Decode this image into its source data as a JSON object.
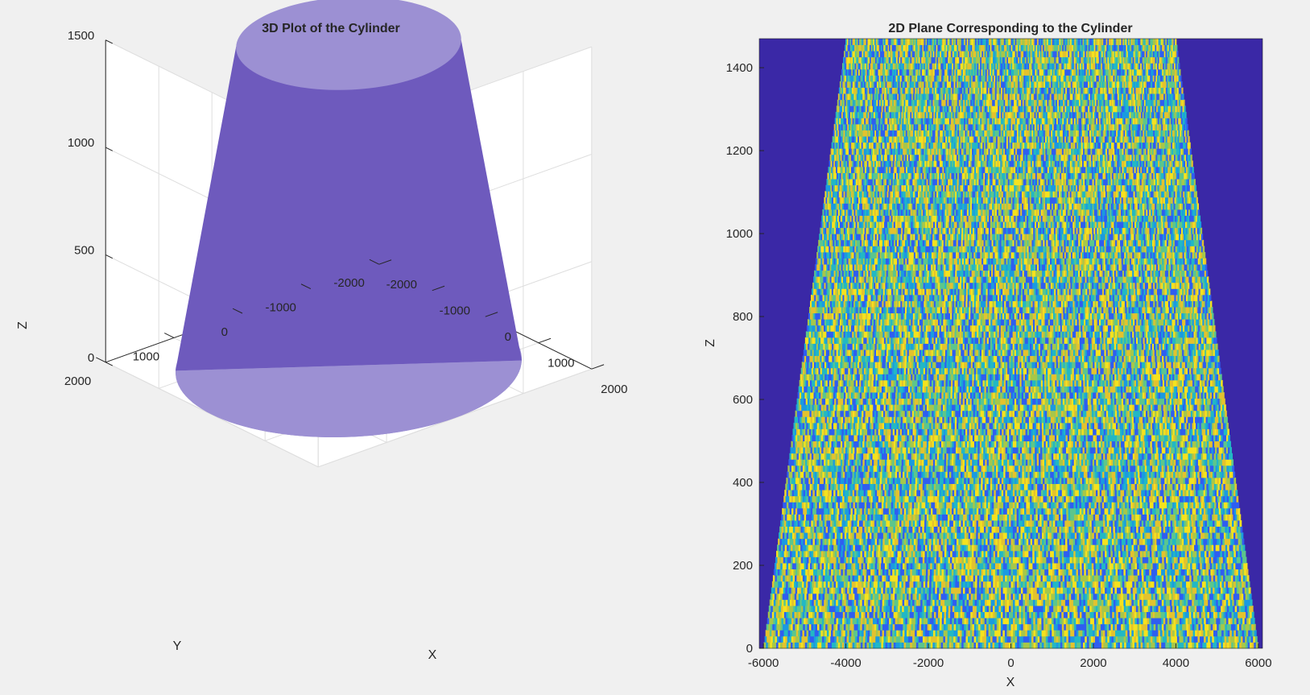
{
  "figure": {
    "background": "#f0f0f0"
  },
  "chart_data": [
    {
      "type": "surface3d",
      "title": "3D Plot of the Cylinder",
      "xlabel": "X",
      "ylabel": "Y",
      "zlabel": "Z",
      "xlim": [
        -2000,
        2000
      ],
      "ylim": [
        -2000,
        2000
      ],
      "zlim": [
        0,
        1500
      ],
      "xticks": [
        -2000,
        -1000,
        0,
        1000,
        2000
      ],
      "yticks": [
        -2000,
        -1000,
        0,
        1000,
        2000
      ],
      "zticks": [
        0,
        500,
        1000,
        1500
      ],
      "xtick_labels": [
        "-2000",
        "-1000",
        "0",
        "1000",
        "2000"
      ],
      "ytick_labels": [
        "-2000",
        "-1000",
        "0",
        "1000",
        "2000"
      ],
      "ztick_labels": [
        "0",
        "500",
        "1000",
        "1500"
      ],
      "grid": true,
      "surface": {
        "shape": "truncated cone",
        "bottom_radius": 2000,
        "top_radius": 1300,
        "z_bottom": 0,
        "z_top": 1500,
        "side_color": "#6e5abd",
        "cap_color": "#9c90d3"
      }
    },
    {
      "type": "heatmap",
      "title": "2D Plane Corresponding to the Cylinder",
      "xlabel": "X",
      "ylabel": "Z",
      "xlim": [
        -6100,
        6100
      ],
      "ylim": [
        0,
        1470
      ],
      "xticks": [
        -6000,
        -4000,
        -2000,
        0,
        2000,
        4000,
        6000
      ],
      "yticks": [
        0,
        200,
        400,
        600,
        800,
        1000,
        1200,
        1400
      ],
      "xtick_labels": [
        "-6000",
        "-4000",
        "-2000",
        "0",
        "2000",
        "4000",
        "6000"
      ],
      "ytick_labels": [
        "0",
        "200",
        "400",
        "600",
        "800",
        "1000",
        "1200",
        "1400"
      ],
      "band": {
        "half_width_at_bottom": 6000,
        "half_width_at_top": 4000,
        "z_top": 1470
      },
      "background_color": "#3a28a6",
      "colormap": [
        "#3a28a6",
        "#2f5ef0",
        "#1a9be0",
        "#22b8c4",
        "#5cc68c",
        "#a6c74a",
        "#e3c22e",
        "#f5e21e"
      ],
      "fill_note": "random values"
    }
  ]
}
